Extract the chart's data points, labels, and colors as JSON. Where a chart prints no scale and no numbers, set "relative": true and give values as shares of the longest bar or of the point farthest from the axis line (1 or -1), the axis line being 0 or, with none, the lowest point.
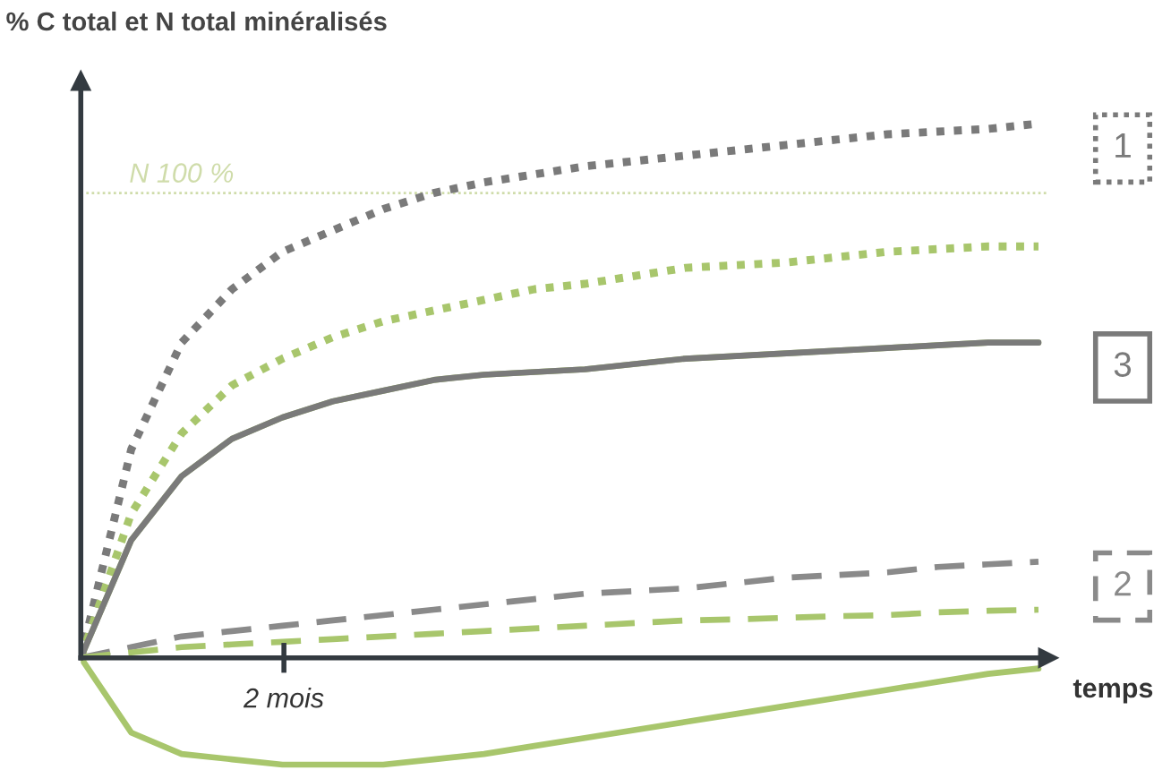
{
  "chart_data": {
    "type": "line",
    "title": "% C total et N total minéralisés",
    "xlabel": "temps",
    "relative": true,
    "categories": [
      null,
      null,
      null,
      null,
      null,
      null,
      null,
      null,
      null,
      null,
      null,
      null,
      null,
      null,
      null,
      null,
      null,
      null,
      null,
      null
    ],
    "annotations": [
      "2 mois"
    ],
    "grid": false,
    "marker": "none",
    "ref_lines": [
      {
        "axis": "y",
        "value": 0.87,
        "label": "N 100 %",
        "color": "#cfdcaa",
        "line_style": "dotted"
      }
    ],
    "series": [
      {
        "name": "1",
        "color": "#7a7a7a",
        "line_style": "dotted",
        "values": [
          0,
          0.39,
          0.59,
          0.69,
          0.76,
          0.8,
          0.84,
          0.87,
          0.89,
          0.905,
          0.92,
          0.93,
          0.94,
          0.95,
          0.96,
          0.97,
          0.98,
          0.985,
          0.99,
          1.0
        ]
      },
      {
        "color": "#a8c66c",
        "line_style": "dotted",
        "values": [
          0,
          0.27,
          0.42,
          0.51,
          0.56,
          0.6,
          0.63,
          0.65,
          0.67,
          0.69,
          0.7,
          0.715,
          0.73,
          0.735,
          0.74,
          0.75,
          0.76,
          0.765,
          0.77,
          0.77
        ]
      },
      {
        "color": "#a8c66c",
        "line_style": "solid",
        "values": [
          0,
          0.22,
          0.34,
          0.41,
          0.45,
          0.48,
          0.5,
          0.52,
          0.53,
          0.535,
          0.54,
          0.55,
          0.56,
          0.565,
          0.57,
          0.575,
          0.58,
          0.585,
          0.59,
          0.59
        ]
      },
      {
        "name": "3",
        "color": "#7a7a7a",
        "line_style": "solid",
        "values": [
          0,
          0.22,
          0.34,
          0.41,
          0.45,
          0.48,
          0.5,
          0.52,
          0.53,
          0.535,
          0.54,
          0.55,
          0.56,
          0.565,
          0.57,
          0.575,
          0.58,
          0.585,
          0.59,
          0.59
        ]
      },
      {
        "name": "2",
        "color": "#8a8a8a",
        "line_style": "dashed",
        "values": [
          0,
          0.02,
          0.04,
          0.05,
          0.06,
          0.07,
          0.08,
          0.09,
          0.1,
          0.11,
          0.12,
          0.125,
          0.13,
          0.14,
          0.15,
          0.155,
          0.16,
          0.17,
          0.175,
          0.18
        ]
      },
      {
        "color": "#a8c66c",
        "line_style": "dashed",
        "values": [
          0,
          0.01,
          0.02,
          0.025,
          0.03,
          0.035,
          0.04,
          0.045,
          0.05,
          0.055,
          0.06,
          0.065,
          0.07,
          0.072,
          0.075,
          0.078,
          0.08,
          0.085,
          0.088,
          0.09
        ]
      },
      {
        "color": "#a8c66c",
        "line_style": "solid",
        "values": [
          0,
          -0.14,
          -0.18,
          -0.19,
          -0.2,
          -0.2,
          -0.2,
          -0.19,
          -0.18,
          -0.165,
          -0.15,
          -0.135,
          -0.12,
          -0.105,
          -0.09,
          -0.075,
          -0.06,
          -0.045,
          -0.03,
          -0.02
        ]
      }
    ]
  }
}
